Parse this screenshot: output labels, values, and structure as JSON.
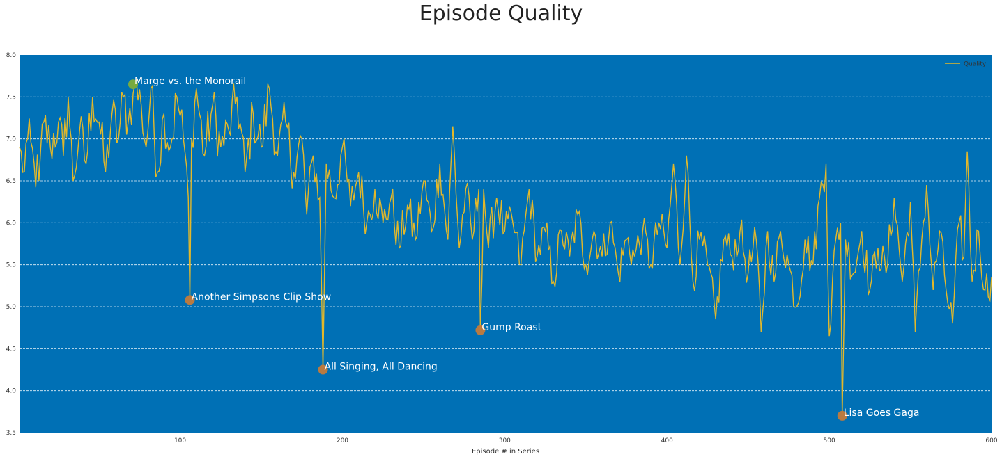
{
  "chart_data": {
    "type": "line",
    "title": "Episode Quality",
    "xlabel": "Episode # in Series",
    "ylabel": "",
    "xlim": [
      1,
      600
    ],
    "ylim": [
      3.5,
      8.0
    ],
    "xticks": [
      100,
      200,
      300,
      400,
      500,
      600
    ],
    "yticks": [
      3.5,
      4.0,
      4.5,
      5.0,
      5.5,
      6.0,
      6.5,
      7.0,
      7.5,
      8.0
    ],
    "grid": "horizontal dashed",
    "legend_position": "top-right",
    "background_color": "#0070b5",
    "series": [
      {
        "name": "Quality",
        "color": "#e3b82a",
        "anchors": [
          [
            1,
            6.9
          ],
          [
            3,
            6.6
          ],
          [
            6,
            7.0
          ],
          [
            10,
            6.7
          ],
          [
            13,
            6.5
          ],
          [
            16,
            7.2
          ],
          [
            20,
            6.9
          ],
          [
            25,
            7.2
          ],
          [
            28,
            6.8
          ],
          [
            31,
            7.5
          ],
          [
            34,
            6.5
          ],
          [
            38,
            7.1
          ],
          [
            42,
            6.7
          ],
          [
            46,
            7.5
          ],
          [
            50,
            7.2
          ],
          [
            54,
            6.6
          ],
          [
            58,
            7.3
          ],
          [
            62,
            7.0
          ],
          [
            65,
            7.5
          ],
          [
            68,
            7.2
          ],
          [
            72,
            7.65
          ],
          [
            76,
            7.4
          ],
          [
            79,
            6.9
          ],
          [
            82,
            7.6
          ],
          [
            86,
            6.6
          ],
          [
            90,
            7.3
          ],
          [
            94,
            6.9
          ],
          [
            98,
            7.5
          ],
          [
            102,
            7.0
          ],
          [
            105,
            6.3
          ],
          [
            106,
            5.08
          ],
          [
            107,
            7.0
          ],
          [
            110,
            7.6
          ],
          [
            115,
            6.8
          ],
          [
            120,
            7.4
          ],
          [
            125,
            6.9
          ],
          [
            130,
            7.1
          ],
          [
            135,
            7.5
          ],
          [
            140,
            6.6
          ],
          [
            145,
            7.3
          ],
          [
            150,
            6.9
          ],
          [
            155,
            7.6
          ],
          [
            160,
            6.8
          ],
          [
            165,
            7.2
          ],
          [
            170,
            6.6
          ],
          [
            175,
            7.0
          ],
          [
            178,
            6.1
          ],
          [
            182,
            6.8
          ],
          [
            186,
            6.3
          ],
          [
            188,
            4.25
          ],
          [
            190,
            6.7
          ],
          [
            195,
            6.3
          ],
          [
            200,
            6.9
          ],
          [
            205,
            6.2
          ],
          [
            210,
            6.6
          ],
          [
            215,
            6.0
          ],
          [
            220,
            6.4
          ],
          [
            225,
            6.0
          ],
          [
            230,
            6.3
          ],
          [
            235,
            5.7
          ],
          [
            240,
            6.2
          ],
          [
            245,
            5.8
          ],
          [
            250,
            6.5
          ],
          [
            255,
            5.9
          ],
          [
            260,
            6.7
          ],
          [
            265,
            5.8
          ],
          [
            268,
            7.15
          ],
          [
            272,
            5.7
          ],
          [
            276,
            6.4
          ],
          [
            280,
            5.8
          ],
          [
            284,
            6.4
          ],
          [
            285,
            4.72
          ],
          [
            287,
            6.4
          ],
          [
            290,
            5.7
          ],
          [
            295,
            6.3
          ],
          [
            300,
            5.9
          ],
          [
            305,
            6.0
          ],
          [
            310,
            5.5
          ],
          [
            315,
            6.4
          ],
          [
            320,
            5.6
          ],
          [
            325,
            5.9
          ],
          [
            330,
            5.3
          ],
          [
            335,
            5.9
          ],
          [
            340,
            5.6
          ],
          [
            345,
            6.1
          ],
          [
            350,
            5.5
          ],
          [
            355,
            5.9
          ],
          [
            360,
            5.6
          ],
          [
            365,
            6.0
          ],
          [
            370,
            5.4
          ],
          [
            375,
            5.8
          ],
          [
            380,
            5.6
          ],
          [
            385,
            5.9
          ],
          [
            390,
            5.5
          ],
          [
            395,
            6.0
          ],
          [
            400,
            5.7
          ],
          [
            404,
            6.7
          ],
          [
            408,
            5.5
          ],
          [
            412,
            6.8
          ],
          [
            416,
            5.3
          ],
          [
            420,
            5.8
          ],
          [
            425,
            5.5
          ],
          [
            430,
            4.85
          ],
          [
            435,
            5.8
          ],
          [
            440,
            5.6
          ],
          [
            445,
            5.9
          ],
          [
            450,
            5.4
          ],
          [
            455,
            5.8
          ],
          [
            458,
            4.7
          ],
          [
            462,
            5.9
          ],
          [
            466,
            5.3
          ],
          [
            470,
            5.9
          ],
          [
            475,
            5.5
          ],
          [
            480,
            5.0
          ],
          [
            485,
            5.8
          ],
          [
            490,
            5.5
          ],
          [
            494,
            6.3
          ],
          [
            498,
            6.7
          ],
          [
            500,
            4.65
          ],
          [
            504,
            5.8
          ],
          [
            507,
            6.0
          ],
          [
            508,
            3.7
          ],
          [
            510,
            5.8
          ],
          [
            515,
            5.4
          ],
          [
            520,
            5.9
          ],
          [
            525,
            5.2
          ],
          [
            530,
            5.7
          ],
          [
            535,
            5.4
          ],
          [
            540,
            6.3
          ],
          [
            545,
            5.3
          ],
          [
            550,
            6.25
          ],
          [
            553,
            4.7
          ],
          [
            557,
            5.8
          ],
          [
            560,
            6.45
          ],
          [
            564,
            5.2
          ],
          [
            568,
            5.9
          ],
          [
            572,
            5.2
          ],
          [
            576,
            4.8
          ],
          [
            580,
            6.0
          ],
          [
            583,
            5.6
          ],
          [
            585,
            6.85
          ],
          [
            588,
            5.3
          ],
          [
            592,
            5.9
          ],
          [
            596,
            5.2
          ],
          [
            600,
            5.35
          ]
        ],
        "note_points": "noisy line sampled between anchors"
      }
    ],
    "highlights": [
      {
        "x": 71,
        "y": 7.65,
        "label": "Marge vs. the Monorail",
        "color": "#7cad3a"
      },
      {
        "x": 106,
        "y": 5.08,
        "label": "Another Simpsons Clip Show",
        "color": "#c27a3b"
      },
      {
        "x": 188,
        "y": 4.25,
        "label": "All Singing, All Dancing",
        "color": "#c27a3b"
      },
      {
        "x": 285,
        "y": 4.72,
        "label": "Gump Roast",
        "color": "#c27a3b"
      },
      {
        "x": 508,
        "y": 3.7,
        "label": "Lisa Goes Gaga",
        "color": "#c27a3b"
      }
    ]
  }
}
